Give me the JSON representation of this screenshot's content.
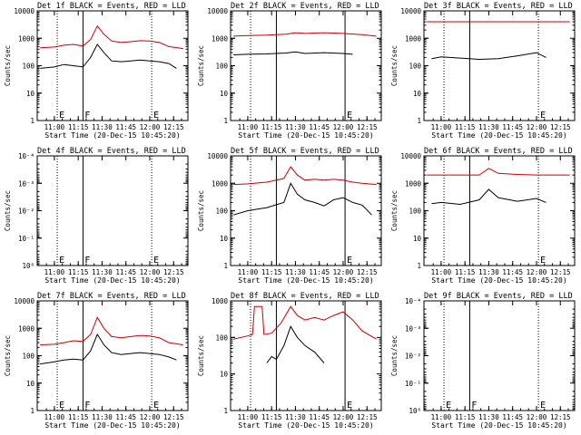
{
  "x_tick_labels": [
    "11:00",
    "11:15",
    "11:30",
    "11:45",
    "12:00",
    "12:15"
  ],
  "x_ticks_min": [
    11.0,
    11.25,
    11.5,
    11.75,
    12.0,
    12.25
  ],
  "xlabel": "Start Time (20-Dec-15 10:45:20)",
  "ylabel": "Counts/sec",
  "colors": {
    "events": "#000000",
    "lld": "#cc0000",
    "axis": "#000000"
  },
  "chart_data": [
    {
      "type": "line",
      "id": "det1",
      "title": "Det 1f BLACK = Events, RED = LLD",
      "xlim": [
        10.82,
        12.4
      ],
      "yscale": "log",
      "ylim": [
        1,
        10000
      ],
      "y_tick_labels": [
        "1",
        "10",
        "100",
        "1000",
        "10000"
      ],
      "y_ticks": [
        1,
        10,
        100,
        1000,
        10000
      ],
      "markers": [
        {
          "x": 11.03,
          "style": "dotted",
          "label": "E"
        },
        {
          "x": 11.3,
          "style": "solid",
          "label": "F"
        },
        {
          "x": 12.02,
          "style": "dotted",
          "label": "E"
        }
      ],
      "series": [
        {
          "name": "LLD",
          "color": "red",
          "x": [
            10.85,
            11.0,
            11.1,
            11.2,
            11.3,
            11.38,
            11.45,
            11.52,
            11.6,
            11.7,
            11.8,
            11.9,
            12.0,
            12.1,
            12.2,
            12.35
          ],
          "y": [
            450,
            480,
            560,
            600,
            520,
            900,
            2800,
            1400,
            800,
            700,
            750,
            820,
            800,
            700,
            500,
            420
          ]
        },
        {
          "name": "Events",
          "color": "black",
          "x": [
            10.85,
            11.0,
            11.1,
            11.2,
            11.3,
            11.38,
            11.45,
            11.52,
            11.6,
            11.7,
            11.8,
            11.9,
            12.0,
            12.1,
            12.2,
            12.28
          ],
          "y": [
            80,
            90,
            110,
            100,
            90,
            200,
            600,
            300,
            150,
            140,
            150,
            160,
            150,
            140,
            120,
            80
          ]
        }
      ]
    },
    {
      "type": "line",
      "id": "det2",
      "title": "Det 2f BLACK = Events, RED = LLD",
      "xlim": [
        10.82,
        12.4
      ],
      "yscale": "log",
      "ylim": [
        1,
        10000
      ],
      "y_tick_labels": [
        "1",
        "10",
        "100",
        "1000",
        "10000"
      ],
      "y_ticks": [
        1,
        10,
        100,
        1000,
        10000
      ],
      "markers": [
        {
          "x": 11.03,
          "style": "dotted",
          "label": ""
        },
        {
          "x": 11.3,
          "style": "solid",
          "label": ""
        },
        {
          "x": 12.02,
          "style": "solid",
          "label": "E"
        }
      ],
      "series": [
        {
          "name": "LLD",
          "color": "red",
          "x": [
            10.85,
            11.0,
            11.2,
            11.4,
            11.5,
            11.6,
            11.8,
            12.0,
            12.2,
            12.35
          ],
          "y": [
            1200,
            1250,
            1300,
            1400,
            1600,
            1500,
            1600,
            1500,
            1350,
            1200
          ]
        },
        {
          "name": "Events",
          "color": "black",
          "x": [
            10.85,
            11.0,
            11.2,
            11.4,
            11.5,
            11.6,
            11.8,
            12.0,
            12.1
          ],
          "y": [
            250,
            260,
            270,
            290,
            320,
            280,
            300,
            280,
            260
          ]
        }
      ]
    },
    {
      "type": "line",
      "id": "det3",
      "title": "Det 3f BLACK = Events, RED = LLD",
      "xlim": [
        10.82,
        12.4
      ],
      "yscale": "log",
      "ylim": [
        1,
        10000
      ],
      "y_tick_labels": [
        "1",
        "10",
        "100",
        "1000",
        "10000"
      ],
      "y_ticks": [
        1,
        10,
        100,
        1000,
        10000
      ],
      "markers": [
        {
          "x": 11.03,
          "style": "dotted",
          "label": ""
        },
        {
          "x": 11.3,
          "style": "solid",
          "label": ""
        },
        {
          "x": 12.02,
          "style": "dotted",
          "label": "E"
        }
      ],
      "series": [
        {
          "name": "LLD",
          "color": "red",
          "x": [
            10.85,
            12.35
          ],
          "y": [
            4000,
            4000
          ]
        },
        {
          "name": "Events",
          "color": "black",
          "x": [
            10.9,
            11.0,
            11.2,
            11.4,
            11.6,
            11.8,
            12.0,
            12.1
          ],
          "y": [
            180,
            210,
            190,
            170,
            180,
            230,
            300,
            200
          ]
        }
      ]
    },
    {
      "type": "line",
      "id": "det4",
      "title": "Det 4f BLACK = Events, RED = LLD",
      "xlim": [
        10.82,
        12.4
      ],
      "yscale": "log",
      "ylim": [
        1,
        0.0001
      ],
      "y_tick_labels": [
        "10⁰",
        "10⁻¹",
        "10⁻²",
        "10⁻³",
        "10⁻⁴"
      ],
      "y_ticks": [
        1,
        0.1,
        0.01,
        0.001,
        0.0001
      ],
      "markers": [
        {
          "x": 11.03,
          "style": "dotted",
          "label": "E"
        },
        {
          "x": 11.3,
          "style": "solid",
          "label": "F"
        },
        {
          "x": 12.02,
          "style": "dotted",
          "label": "E"
        }
      ],
      "series": []
    },
    {
      "type": "line",
      "id": "det5",
      "title": "Det 5f BLACK = Events, RED = LLD",
      "xlim": [
        10.82,
        12.4
      ],
      "yscale": "log",
      "ylim": [
        1,
        10000
      ],
      "y_tick_labels": [
        "1",
        "10",
        "100",
        "1000",
        "10000"
      ],
      "y_ticks": [
        1,
        10,
        100,
        1000,
        10000
      ],
      "markers": [
        {
          "x": 11.03,
          "style": "dotted",
          "label": ""
        },
        {
          "x": 11.3,
          "style": "solid",
          "label": ""
        },
        {
          "x": 12.02,
          "style": "solid",
          "label": "E"
        }
      ],
      "series": [
        {
          "name": "LLD",
          "color": "red",
          "x": [
            10.85,
            11.0,
            11.2,
            11.38,
            11.45,
            11.52,
            11.6,
            11.7,
            11.8,
            11.9,
            12.0,
            12.1,
            12.2,
            12.35
          ],
          "y": [
            900,
            950,
            1100,
            1500,
            4000,
            2000,
            1300,
            1400,
            1300,
            1400,
            1300,
            1100,
            1000,
            900
          ]
        },
        {
          "name": "Events",
          "color": "black",
          "x": [
            10.85,
            11.0,
            11.2,
            11.38,
            11.45,
            11.52,
            11.6,
            11.7,
            11.8,
            11.9,
            12.0,
            12.1,
            12.2,
            12.3
          ],
          "y": [
            70,
            100,
            130,
            200,
            1000,
            400,
            250,
            200,
            150,
            250,
            300,
            200,
            160,
            70
          ]
        }
      ]
    },
    {
      "type": "line",
      "id": "det6",
      "title": "Det 6f BLACK = Events, RED = LLD",
      "xlim": [
        10.82,
        12.4
      ],
      "yscale": "log",
      "ylim": [
        1,
        10000
      ],
      "y_tick_labels": [
        "1",
        "10",
        "100",
        "1000",
        "10000"
      ],
      "y_ticks": [
        1,
        10,
        100,
        1000,
        10000
      ],
      "markers": [
        {
          "x": 11.03,
          "style": "dotted",
          "label": ""
        },
        {
          "x": 11.3,
          "style": "solid",
          "label": ""
        },
        {
          "x": 12.02,
          "style": "dotted",
          "label": "E"
        }
      ],
      "series": [
        {
          "name": "LLD",
          "color": "red",
          "x": [
            10.85,
            11.2,
            11.4,
            11.5,
            11.6,
            11.8,
            12.0,
            12.35
          ],
          "y": [
            2000,
            2000,
            2000,
            3500,
            2300,
            2100,
            2000,
            2000
          ]
        },
        {
          "name": "Events",
          "color": "black",
          "x": [
            10.9,
            11.0,
            11.2,
            11.4,
            11.5,
            11.6,
            11.8,
            12.0,
            12.1
          ],
          "y": [
            180,
            200,
            170,
            250,
            600,
            300,
            220,
            280,
            200
          ]
        }
      ]
    },
    {
      "type": "line",
      "id": "det7",
      "title": "Det 7f BLACK = Events, RED = LLD",
      "xlim": [
        10.82,
        12.4
      ],
      "yscale": "log",
      "ylim": [
        1,
        10000
      ],
      "y_tick_labels": [
        "1",
        "10",
        "100",
        "1000",
        "10000"
      ],
      "y_ticks": [
        1,
        10,
        100,
        1000,
        10000
      ],
      "markers": [
        {
          "x": 11.03,
          "style": "dotted",
          "label": "E"
        },
        {
          "x": 11.3,
          "style": "solid",
          "label": "F"
        },
        {
          "x": 12.02,
          "style": "dotted",
          "label": "E"
        }
      ],
      "series": [
        {
          "name": "LLD",
          "color": "red",
          "x": [
            10.85,
            11.0,
            11.1,
            11.2,
            11.3,
            11.38,
            11.45,
            11.52,
            11.6,
            11.7,
            11.8,
            11.9,
            12.0,
            12.1,
            12.2,
            12.35
          ],
          "y": [
            250,
            260,
            300,
            350,
            330,
            600,
            2500,
            1000,
            500,
            450,
            500,
            550,
            520,
            450,
            300,
            250
          ]
        },
        {
          "name": "Events",
          "color": "black",
          "x": [
            10.85,
            11.0,
            11.1,
            11.2,
            11.3,
            11.38,
            11.45,
            11.52,
            11.6,
            11.7,
            11.8,
            11.9,
            12.0,
            12.1,
            12.2,
            12.28
          ],
          "y": [
            50,
            60,
            70,
            75,
            70,
            150,
            600,
            250,
            130,
            110,
            120,
            130,
            120,
            110,
            90,
            70
          ]
        }
      ]
    },
    {
      "type": "line",
      "id": "det8",
      "title": "Det 8f BLACK = Events, RED = LLD",
      "xlim": [
        10.82,
        12.4
      ],
      "yscale": "log",
      "ylim": [
        1,
        1000
      ],
      "y_tick_labels": [
        "1",
        "10",
        "100",
        "1000"
      ],
      "y_ticks": [
        1,
        10,
        100,
        1000
      ],
      "markers": [
        {
          "x": 11.03,
          "style": "dotted",
          "label": ""
        },
        {
          "x": 11.3,
          "style": "solid",
          "label": ""
        },
        {
          "x": 12.02,
          "style": "solid",
          "label": "E"
        }
      ],
      "series": [
        {
          "name": "LLD",
          "color": "red",
          "x": [
            10.85,
            11.0,
            11.05,
            11.07,
            11.15,
            11.17,
            11.25,
            11.35,
            11.45,
            11.52,
            11.6,
            11.7,
            11.8,
            11.9,
            12.0,
            12.1,
            12.2,
            12.35
          ],
          "y": [
            90,
            110,
            120,
            700,
            700,
            120,
            130,
            250,
            700,
            400,
            300,
            350,
            300,
            400,
            500,
            300,
            150,
            90
          ]
        },
        {
          "name": "Events",
          "color": "black",
          "x": [
            11.2,
            11.25,
            11.3,
            11.38,
            11.45,
            11.52,
            11.6,
            11.7,
            11.8
          ],
          "y": [
            20,
            30,
            25,
            60,
            200,
            100,
            60,
            40,
            20
          ]
        }
      ]
    },
    {
      "type": "line",
      "id": "det9",
      "title": "Det 9f BLACK = Events, RED = LLD",
      "xlim": [
        10.82,
        12.4
      ],
      "yscale": "log",
      "ylim": [
        1,
        0.0001
      ],
      "y_tick_labels": [
        "10⁰",
        "10⁻¹",
        "10⁻²",
        "10⁻³",
        "10⁻⁴"
      ],
      "y_ticks": [
        1,
        0.1,
        0.01,
        0.001,
        0.0001
      ],
      "markers": [
        {
          "x": 11.03,
          "style": "dotted",
          "label": "E"
        },
        {
          "x": 11.3,
          "style": "solid",
          "label": "F"
        },
        {
          "x": 12.02,
          "style": "dotted",
          "label": "E"
        }
      ],
      "series": []
    }
  ]
}
